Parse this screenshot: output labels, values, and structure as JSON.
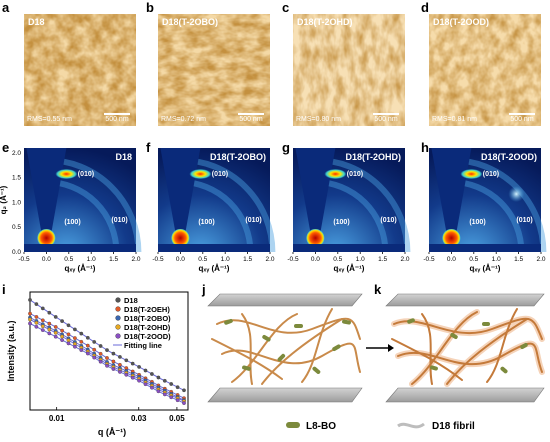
{
  "panel_letters": [
    "a",
    "b",
    "c",
    "d",
    "e",
    "f",
    "g",
    "h",
    "i",
    "j",
    "k"
  ],
  "afm": [
    {
      "title": "D18",
      "rms": "RMS=0.55 nm",
      "scale": "500 nm"
    },
    {
      "title": "D18(T-2OBO)",
      "rms": "RMS=0.72 nm",
      "scale": "500 nm"
    },
    {
      "title": "D18(T-2OHD)",
      "rms": "RMS=0.80 nm",
      "scale": "500 nm"
    },
    {
      "title": "D18(T-2OOD)",
      "rms": "RMS=0.81 nm",
      "scale": "500 nm"
    }
  ],
  "giwaxs": {
    "ylabel": "q₂ (Å⁻¹)",
    "xlabel": "qₓᵧ (Å⁻¹)",
    "xticks": [
      "-0.5",
      "0.0",
      "0.5",
      "1.0",
      "1.5",
      "2.0"
    ],
    "yticks": [
      "0.0",
      "0.5",
      "1.0",
      "1.5",
      "2.0"
    ],
    "peak_010": "(010)",
    "peak_100": "(100)",
    "titles": [
      "D18",
      "D18(T-2OBO)",
      "D18(T-2OHD)",
      "D18(T-2OOD)"
    ]
  },
  "chart_data": {
    "type": "line",
    "title": "",
    "xlabel": "q (Å⁻¹)",
    "ylabel": "Intensity (a.u.)",
    "xscale": "log",
    "xticks": [
      "0.01",
      "0.03",
      "0.05"
    ],
    "legend_placement": "top-right",
    "series": [
      {
        "name": "D18",
        "color": "#555555",
        "q": [
          0.007,
          0.01,
          0.015,
          0.02,
          0.03,
          0.04,
          0.055
        ],
        "log_intensity": [
          5.6,
          4.7,
          3.7,
          3.0,
          2.2,
          1.6,
          1.0
        ]
      },
      {
        "name": "D18(T-2OEH)",
        "color": "#e0592a",
        "q": [
          0.007,
          0.01,
          0.015,
          0.02,
          0.03,
          0.04,
          0.055
        ],
        "log_intensity": [
          4.9,
          4.2,
          3.3,
          2.6,
          1.8,
          1.2,
          0.6
        ]
      },
      {
        "name": "D18(T-2OBO)",
        "color": "#3a66b0",
        "q": [
          0.007,
          0.01,
          0.015,
          0.02,
          0.03,
          0.04,
          0.055
        ],
        "log_intensity": [
          4.7,
          4.0,
          3.1,
          2.4,
          1.7,
          1.1,
          0.5
        ]
      },
      {
        "name": "D18(T-2OHD)",
        "color": "#e6a823",
        "q": [
          0.007,
          0.01,
          0.015,
          0.02,
          0.03,
          0.04,
          0.055
        ],
        "log_intensity": [
          4.6,
          3.9,
          3.0,
          2.3,
          1.6,
          1.0,
          0.45
        ]
      },
      {
        "name": "D18(T-2OOD)",
        "color": "#8a4fc2",
        "q": [
          0.007,
          0.01,
          0.015,
          0.02,
          0.03,
          0.04,
          0.055
        ],
        "log_intensity": [
          4.4,
          3.7,
          2.9,
          2.2,
          1.5,
          0.9,
          0.35
        ]
      }
    ],
    "fit_label": "Fitting line"
  },
  "schematic": {
    "legend_molecule": "L8-BO",
    "legend_fibril": "D18 fibril"
  }
}
